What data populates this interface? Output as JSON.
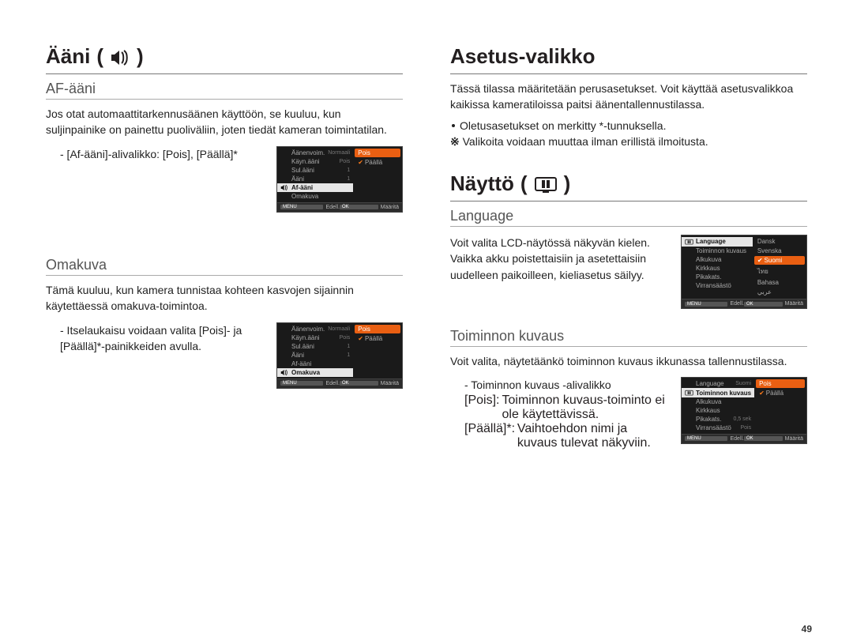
{
  "page_number": "49",
  "colors": {
    "text": "#231f20",
    "rule": "#777777",
    "rule_light": "#aaaaaa",
    "menu_bg": "#1a1a1a",
    "menu_text": "#aaaaaa",
    "menu_sel_bg": "#e6e6e6",
    "menu_sel_text": "#111111",
    "menu_hi_bg": "#e95f12",
    "menu_hi_text": "#ffffff",
    "check": "#ff7b1a"
  },
  "left": {
    "title": "Ääni",
    "icon": "speaker-icon",
    "sections": [
      {
        "heading": "AF-ääni",
        "body": "Jos otat automaattitarkennusäänen käyttöön, se kuuluu, kun suljinpainike on painettu puoliväliin, joten tiedät kameran toimintatilan.",
        "subline": "- [Af-ääni]-alivalikko: [Pois], [Päällä]*",
        "menu": "sound_af"
      },
      {
        "heading": "Omakuva",
        "body": "Tämä kuuluu, kun kamera tunnistaa kohteen kasvojen sijainnin käytettäessä omakuva-toimintoa.",
        "subline": "- Itselaukaisu voidaan valita [Pois]- ja [Päällä]*-painikkeiden avulla.",
        "menu": "sound_self"
      }
    ]
  },
  "right": {
    "title_settings": "Asetus-valikko",
    "settings_body": "Tässä tilassa määritetään perusasetukset. Voit käyttää asetusvalikkoa kaikissa kameratiloissa paitsi äänentallennustilassa.",
    "settings_bullet": "Oletusasetukset on merkitty *-tunnuksella.",
    "settings_note": "Valikoita voidaan muuttaa ilman erillistä ilmoitusta.",
    "note_prefix": "※",
    "title_display": "Näyttö",
    "display_icon": "display-icon",
    "sections": [
      {
        "heading": "Language",
        "body": "Voit valita LCD-näytössä näkyvän kielen. Vaikka akku poistettaisiin ja asetettaisiin uudelleen paikoilleen, kieliasetus säilyy.",
        "menu": "display_lang"
      },
      {
        "heading": "Toiminnon kuvaus",
        "body": "Voit valita, näytetäänkö toiminnon kuvaus ikkunassa tallennustilassa.",
        "subline_label": "- Toiminnon kuvaus -alivalikko",
        "options": [
          {
            "label": "[Pois]",
            "desc": "Toiminnon kuvaus-toiminto ei ole käytettävissä."
          },
          {
            "label": "[Päällä]*",
            "desc": "Vaihtoehdon nimi ja kuvaus tulevat näkyviin."
          }
        ],
        "menu": "display_desc"
      }
    ]
  },
  "menus": {
    "foot": {
      "back_key": "MENU",
      "back": "Edell.",
      "ok_key": "OK",
      "set": "Määritä"
    },
    "sound_af": {
      "icon": "speaker-icon",
      "left": [
        {
          "label": "Äänenvoim.",
          "val": "Normaali"
        },
        {
          "label": "Käyn.ääni",
          "val": "Pois"
        },
        {
          "label": "Sul.ääni",
          "val": "1"
        },
        {
          "label": "Ääni",
          "val": "1"
        },
        {
          "label": "Af-ääni",
          "sel": true
        },
        {
          "label": "Omakuva"
        }
      ],
      "right": [
        {
          "label": "Pois",
          "hi": true
        },
        {
          "label": "Päällä",
          "check": true
        }
      ]
    },
    "sound_self": {
      "icon": "speaker-icon",
      "left": [
        {
          "label": "Äänenvoim.",
          "val": "Normaali"
        },
        {
          "label": "Käyn.ääni",
          "val": "Pois"
        },
        {
          "label": "Sul.ääni",
          "val": "1"
        },
        {
          "label": "Ääni",
          "val": "1"
        },
        {
          "label": "Af-ääni"
        },
        {
          "label": "Omakuva",
          "sel": true
        }
      ],
      "right": [
        {
          "label": "Pois",
          "hi": true
        },
        {
          "label": "Päällä",
          "check": true
        }
      ]
    },
    "display_lang": {
      "icon": "display-icon",
      "left": [
        {
          "label": "Language",
          "sel": true
        },
        {
          "label": "Toiminnon kuvaus"
        },
        {
          "label": "Alkukuva"
        },
        {
          "label": "Kirkkaus"
        },
        {
          "label": "Pikakats."
        },
        {
          "label": "Virransäästö"
        }
      ],
      "right": [
        {
          "label": "Dansk"
        },
        {
          "label": "Svenska"
        },
        {
          "label": "Suomi",
          "hi": true,
          "check": true
        },
        {
          "label": "ไทย"
        },
        {
          "label": "Bahasa"
        },
        {
          "label": "عربي"
        }
      ]
    },
    "display_desc": {
      "icon": "display-icon",
      "left": [
        {
          "label": "Language",
          "val": "Suomi"
        },
        {
          "label": "Toiminnon kuvaus",
          "sel": true
        },
        {
          "label": "Alkukuva"
        },
        {
          "label": "Kirkkaus"
        },
        {
          "label": "Pikakats.",
          "val": "0,5 sek"
        },
        {
          "label": "Virransäästö",
          "val": "Pois"
        }
      ],
      "right": [
        {
          "label": "Pois",
          "hi": true
        },
        {
          "label": "Päällä",
          "check": true
        }
      ]
    }
  }
}
